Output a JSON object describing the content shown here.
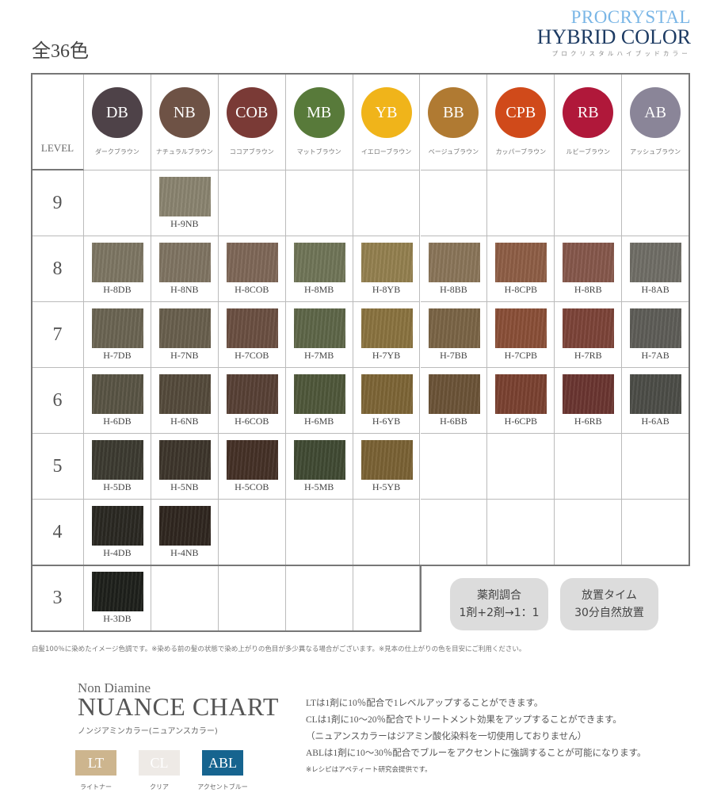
{
  "header": {
    "count": "全36色",
    "logo_line1": "PROCRYSTAL",
    "logo_line2": "HYBRID COLOR",
    "logo_kana": "プロクリスタルハイブッドカラー"
  },
  "table": {
    "level_label": "LEVEL",
    "columns": [
      {
        "code": "DB",
        "name": "ダークブラウン",
        "color": "#4e4248"
      },
      {
        "code": "NB",
        "name": "ナチュラルブラウン",
        "color": "#6e5245"
      },
      {
        "code": "COB",
        "name": "ココアブラウン",
        "color": "#7a3a36"
      },
      {
        "code": "MB",
        "name": "マットブラウン",
        "color": "#587a3a"
      },
      {
        "code": "YB",
        "name": "イエローブラウン",
        "color": "#f0b41a"
      },
      {
        "code": "BB",
        "name": "ベージュブラウン",
        "color": "#b07a32"
      },
      {
        "code": "CPB",
        "name": "カッパーブラウン",
        "color": "#d04a1a"
      },
      {
        "code": "RB",
        "name": "ルビーブラウン",
        "color": "#b0183a"
      },
      {
        "code": "AB",
        "name": "アッシュブラウン",
        "color": "#8a8598"
      }
    ],
    "rows": [
      {
        "level": "9",
        "cells": [
          null,
          {
            "code": "H-9NB",
            "color": "#8a8470"
          },
          null,
          null,
          null,
          null,
          null,
          null,
          null
        ]
      },
      {
        "level": "8",
        "cells": [
          {
            "code": "H-8DB",
            "color": "#7d7663"
          },
          {
            "code": "H-8NB",
            "color": "#7f7462"
          },
          {
            "code": "H-8COB",
            "color": "#7e6757"
          },
          {
            "code": "H-8MB",
            "color": "#707557"
          },
          {
            "code": "H-8YB",
            "color": "#94804f"
          },
          {
            "code": "H-8BB",
            "color": "#8a7559"
          },
          {
            "code": "H-8CPB",
            "color": "#8e5e45"
          },
          {
            "code": "H-8RB",
            "color": "#86574b"
          },
          {
            "code": "H-8AB",
            "color": "#706e66"
          }
        ]
      },
      {
        "level": "7",
        "cells": [
          {
            "code": "H-7DB",
            "color": "#6a6452"
          },
          {
            "code": "H-7NB",
            "color": "#685f4d"
          },
          {
            "code": "H-7COB",
            "color": "#6a4f41"
          },
          {
            "code": "H-7MB",
            "color": "#5e6648"
          },
          {
            "code": "H-7YB",
            "color": "#8a733f"
          },
          {
            "code": "H-7BB",
            "color": "#7a6445"
          },
          {
            "code": "H-7CPB",
            "color": "#8a4f37"
          },
          {
            "code": "H-7RB",
            "color": "#7c4338"
          },
          {
            "code": "H-7AB",
            "color": "#5e5d57"
          }
        ]
      },
      {
        "level": "6",
        "cells": [
          {
            "code": "H-6DB",
            "color": "#595444"
          },
          {
            "code": "H-6NB",
            "color": "#544a3b"
          },
          {
            "code": "H-6COB",
            "color": "#574035"
          },
          {
            "code": "H-6MB",
            "color": "#4f573a"
          },
          {
            "code": "H-6YB",
            "color": "#7d6536"
          },
          {
            "code": "H-6BB",
            "color": "#6b5337"
          },
          {
            "code": "H-6CPB",
            "color": "#7a4130"
          },
          {
            "code": "H-6RB",
            "color": "#6a3530"
          },
          {
            "code": "H-6AB",
            "color": "#4c4d47"
          }
        ]
      },
      {
        "level": "5",
        "cells": [
          {
            "code": "H-5DB",
            "color": "#3c3a30"
          },
          {
            "code": "H-5NB",
            "color": "#3d352b"
          },
          {
            "code": "H-5COB",
            "color": "#443026"
          },
          {
            "code": "H-5MB",
            "color": "#404a33"
          },
          {
            "code": "H-5YB",
            "color": "#7a6234"
          },
          null,
          null,
          null,
          null
        ]
      },
      {
        "level": "4",
        "cells": [
          {
            "code": "H-4DB",
            "color": "#2a2822"
          },
          {
            "code": "H-4NB",
            "color": "#2f261f"
          },
          null,
          null,
          null,
          null,
          null,
          null,
          null
        ]
      },
      {
        "level": "3",
        "cells": [
          {
            "code": "H-3DB",
            "color": "#1e201b"
          },
          null,
          null,
          null,
          null
        ]
      }
    ]
  },
  "info": {
    "mix": {
      "title": "薬剤調合",
      "value": "1剤+2剤→1：1"
    },
    "time": {
      "title": "放置タイム",
      "value": "30分自然放置"
    }
  },
  "note": "白髪100％に染めたイメージ色調です。※染める前の髪の状態で染め上がりの色目が多少異なる場合がございます。※見本の仕上がりの色を目安にご利用ください。",
  "nuance": {
    "subtitle": "Non Diamine",
    "title": "NUANCE CHART",
    "kana": "ノンジアミンカラー(ニュアンスカラー)",
    "items": [
      {
        "code": "LT",
        "name": "ライトナー",
        "color": "#cdb58e"
      },
      {
        "code": "CL",
        "name": "クリア",
        "color": "#eeeae6"
      },
      {
        "code": "ABL",
        "name": "アクセントブルー",
        "color": "#16648f"
      }
    ],
    "lines": [
      "LTは1剤に10％配合で1レベルアップすることができます。",
      "CLは1剤に10～20％配合でトリートメント効果をアップすることができます。",
      "（ニュアンスカラーはジアミン酸化染料を一切使用しておりません）",
      "ABLは1剤に10～30％配合でブルーをアクセントに強調することが可能になります。"
    ],
    "footnote": "※レシピはアペティート研究会提供です。"
  }
}
